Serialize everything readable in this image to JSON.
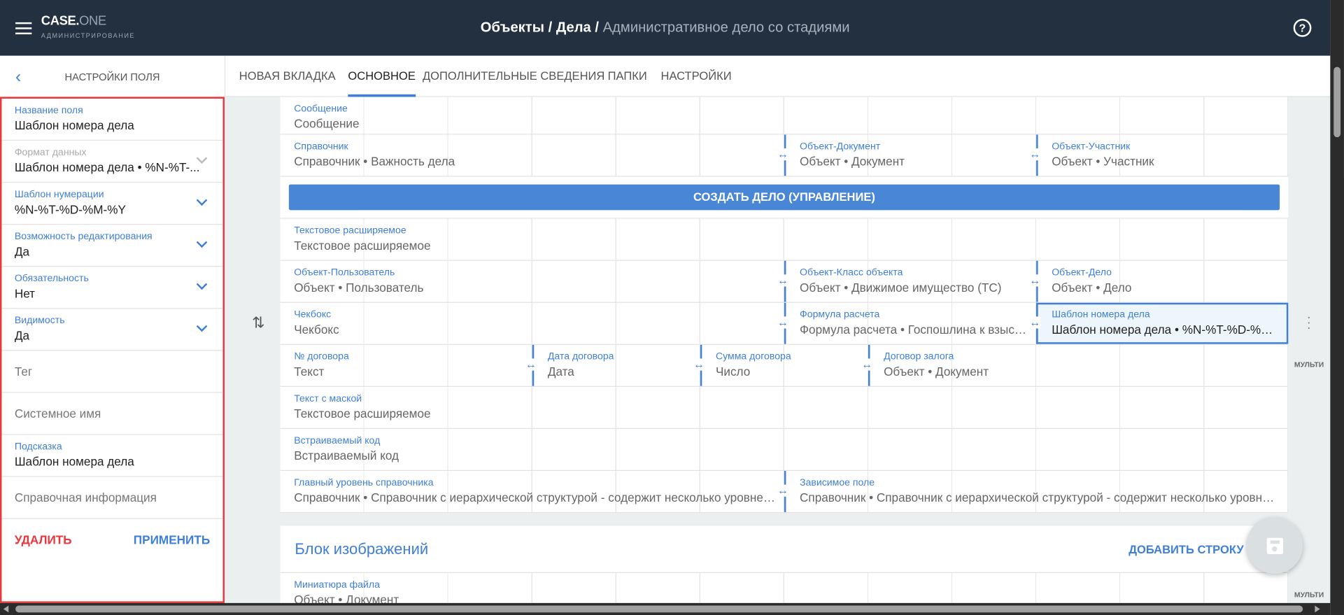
{
  "header": {
    "logo_main": "CASE.",
    "logo_accent": "ONE",
    "logo_sub": "АДМИНИСТРИРОВАНИЕ",
    "breadcrumb_bold": "Объекты / Дела / ",
    "breadcrumb_rest": "Административное дело со стадиями",
    "help_icon": "?"
  },
  "left_panel": {
    "title": "НАСТРОЙКИ ПОЛЯ",
    "fields": [
      {
        "label": "Название поля",
        "value": "Шаблон номера дела",
        "dropdown": false
      },
      {
        "label": "Формат данных",
        "value": "Шаблон номера дела • %N-%T-...",
        "dropdown": true,
        "disabled": true
      },
      {
        "label": "Шаблон нумерации",
        "value": "%N-%T-%D-%M-%Y",
        "dropdown": true
      },
      {
        "label": "Возможность редактирования",
        "value": "Да",
        "dropdown": true
      },
      {
        "label": "Обязательность",
        "value": "Нет",
        "dropdown": true
      },
      {
        "label": "Видимость",
        "value": "Да",
        "dropdown": true
      },
      {
        "placeholder": "Тег"
      },
      {
        "placeholder": "Системное имя"
      },
      {
        "label": "Подсказка",
        "value": "Шаблон номера дела",
        "dropdown": false
      },
      {
        "placeholder": "Справочная информация"
      }
    ],
    "delete_label": "УДАЛИТЬ",
    "apply_label": "ПРИМЕНИТЬ"
  },
  "tabs": [
    {
      "label": "НОВАЯ ВКЛАДКА"
    },
    {
      "label": "ОСНОВНОЕ",
      "active": true
    },
    {
      "label": "ДОПОЛНИТЕЛЬНЫЕ СВЕДЕНИЯ"
    },
    {
      "label": "ПАПКИ"
    },
    {
      "label": "НАСТРОЙКИ"
    }
  ],
  "form_rows": [
    [
      {
        "label": "Сообщение",
        "value": "Сообщение",
        "span": 12
      }
    ],
    [
      {
        "label": "Справочник",
        "value": "Справочник • Важность дела",
        "span": 6
      },
      {
        "label": "Объект-Документ",
        "value": "Объект • Документ",
        "span": 3
      },
      {
        "label": "Объект-Участник",
        "value": "Объект • Участник",
        "span": 3
      }
    ],
    {
      "button": "СОЗДАТЬ ДЕЛО (УПРАВЛЕНИЕ)"
    },
    [
      {
        "label": "Текстовое расширяемое",
        "value": "Текстовое расширяемое",
        "span": 12
      }
    ],
    [
      {
        "label": "Объект-Пользователь",
        "value": "Объект • Пользователь",
        "span": 6
      },
      {
        "label": "Объект-Класс объекта",
        "value": "Объект • Движимое имущество (ТС)",
        "span": 3
      },
      {
        "label": "Объект-Дело",
        "value": "Объект • Дело",
        "span": 3
      }
    ],
    [
      {
        "label": "Чекбокс",
        "value": "Чекбокс",
        "span": 6
      },
      {
        "label": "Формула расчета",
        "value": "Формула расчета • Госпошлина к взысканию",
        "span": 3
      },
      {
        "label": "Шаблон номера дела",
        "value": "Шаблон номера дела • %N-%T-%D-%M-%Y",
        "span": 3,
        "selected": true
      }
    ],
    [
      {
        "label": "№ договора",
        "value": "Текст",
        "span": 3
      },
      {
        "label": "Дата договора",
        "value": "Дата",
        "span": 2
      },
      {
        "label": "Сумма договора",
        "value": "Число",
        "span": 2
      },
      {
        "label": "Договор залога",
        "value": "Объект • Документ",
        "span": 5
      }
    ],
    [
      {
        "label": "Текст с маской",
        "value": "Текстовое расширяемое",
        "span": 12
      }
    ],
    [
      {
        "label": "Встраиваемый код",
        "value": "Встраиваемый код",
        "span": 12
      }
    ],
    [
      {
        "label": "Главный уровень справочника",
        "value": "Справочник • Справочник с иерархической структурой - содержит несколько уровней вложенности",
        "span": 6
      },
      {
        "label": "Зависимое поле",
        "value": "Справочник • Справочник с иерархической структурой - содержит несколько уровней вложенности",
        "span": 6
      }
    ]
  ],
  "image_block": {
    "title": "Блок изображений",
    "add_row_label": "ДОБАВИТЬ СТРОКУ",
    "rows": [
      [
        {
          "label": "Миниатюра файла",
          "value": "Объект • Документ",
          "span": 12
        }
      ]
    ]
  },
  "multi_label": "МУЛЬТИ",
  "colors": {
    "header_bg": "#233040",
    "accent": "#3f7fd6",
    "button": "#4a86d6",
    "danger": "#e8383d",
    "selected_bg": "#eef6fd"
  }
}
